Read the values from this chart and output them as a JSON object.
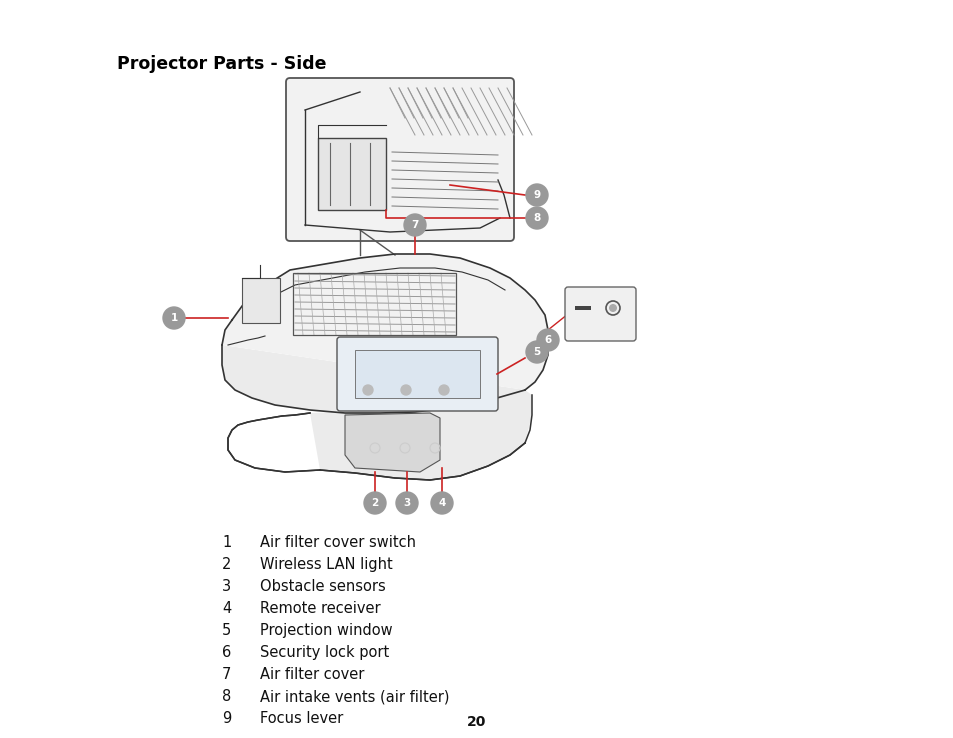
{
  "title": "Projector Parts - Side",
  "page_number": "20",
  "background_color": "#ffffff",
  "title_fontsize": 12.5,
  "title_fontweight": "bold",
  "legend_items": [
    {
      "number": "1",
      "label": "Air filter cover switch"
    },
    {
      "number": "2",
      "label": "Wireless LAN light"
    },
    {
      "number": "3",
      "label": "Obstacle sensors"
    },
    {
      "number": "4",
      "label": "Remote receiver"
    },
    {
      "number": "5",
      "label": "Projection window"
    },
    {
      "number": "6",
      "label": "Security lock port"
    },
    {
      "number": "7",
      "label": "Air filter cover"
    },
    {
      "number": "8",
      "label": "Air intake vents (air filter)"
    },
    {
      "number": "9",
      "label": "Focus lever"
    }
  ],
  "red_line": "#cc2222",
  "gray_bubble": "#999999",
  "line_color": "#333333",
  "light_line": "#888888"
}
